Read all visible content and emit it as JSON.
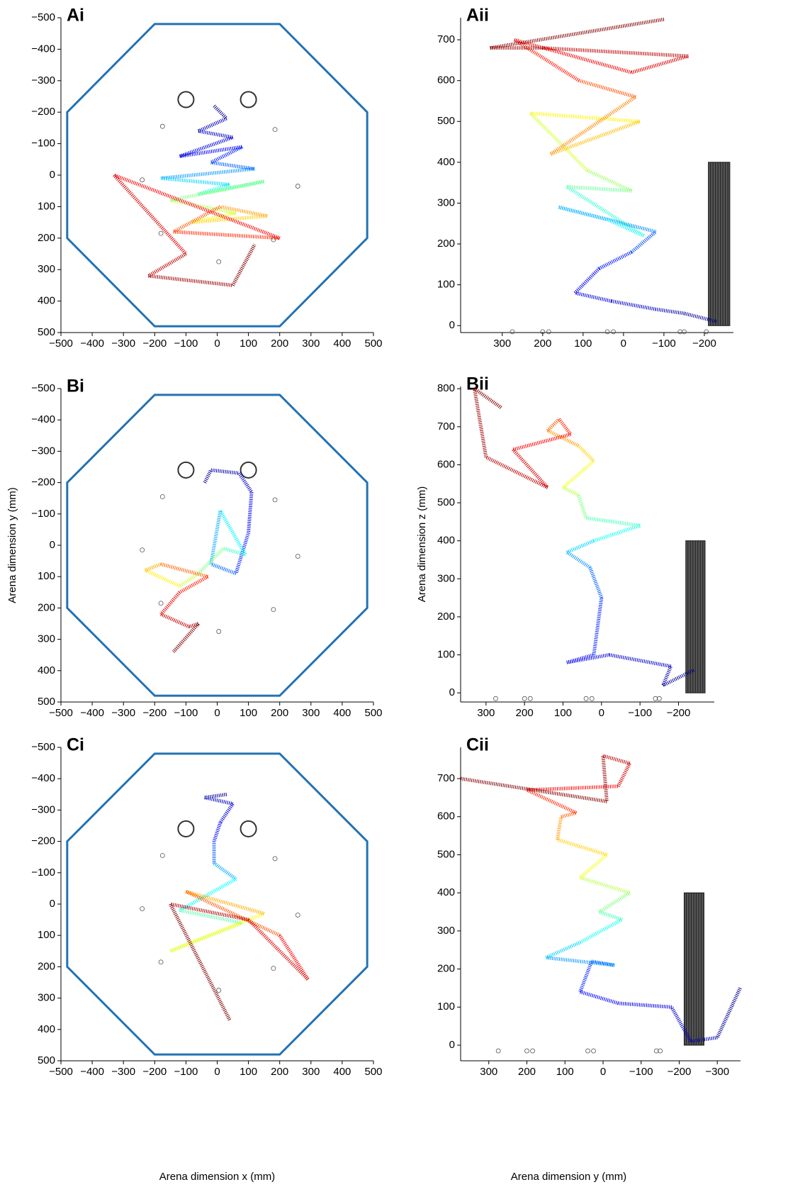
{
  "chart_data": [
    {
      "type": "line",
      "title": "Ai",
      "xlim": [
        -500,
        500
      ],
      "ylim": [
        500,
        -500
      ],
      "xticks": [
        {
          "value": -500,
          "label": "−500"
        },
        {
          "value": -400,
          "label": "−400"
        },
        {
          "value": -300,
          "label": "−300"
        },
        {
          "value": -200,
          "label": "−200"
        },
        {
          "value": -100,
          "label": "−100"
        },
        0,
        100,
        200,
        300,
        400,
        500
      ],
      "yticks": [
        {
          "value": -500,
          "label": "−500"
        },
        {
          "value": -400,
          "label": "−400"
        },
        {
          "value": -300,
          "label": "−300"
        },
        {
          "value": -200,
          "label": "−200"
        },
        {
          "value": -100,
          "label": "−100"
        },
        0,
        100,
        200,
        300,
        400,
        500
      ],
      "arena": {
        "color": "#2272b4",
        "x": [
          -200,
          200,
          480,
          480,
          200,
          -200,
          -480,
          -480
        ],
        "y": [
          -480,
          -480,
          -200,
          200,
          480,
          480,
          200,
          -200
        ]
      },
      "posts": {
        "x": [
          -100,
          100
        ],
        "y": [
          -240,
          -240
        ],
        "r": 25
      },
      "markers": {
        "x": [
          -175,
          185,
          -240,
          258,
          -180,
          180,
          5
        ],
        "y": [
          -155,
          -145,
          15,
          35,
          185,
          205,
          275
        ]
      },
      "colormap": [
        "#00008f",
        "#0000ff",
        "#00ffff",
        "#ffff00",
        "#ff0000",
        "#800000"
      ],
      "series": [
        {
          "x": [
            -10,
            30,
            -60,
            50,
            -120,
            80,
            -20,
            120,
            -180,
            40,
            -60,
            150,
            -150,
            60,
            -80,
            160,
            10,
            -140,
            200,
            -330,
            -100,
            -220,
            50,
            120
          ],
          "y": [
            -220,
            -180,
            -140,
            -120,
            -60,
            -90,
            -40,
            -20,
            10,
            30,
            60,
            20,
            80,
            120,
            150,
            130,
            100,
            180,
            200,
            0,
            250,
            320,
            350,
            220
          ]
        }
      ]
    },
    {
      "type": "line",
      "title": "Aii",
      "xlim": [
        403,
        -272
      ],
      "ylim": [
        -17,
        754
      ],
      "xticks": [
        300,
        200,
        100,
        0,
        {
          "value": -100,
          "label": "−100"
        },
        {
          "value": -200,
          "label": "−200"
        }
      ],
      "yticks": [
        0,
        100,
        200,
        300,
        400,
        500,
        600,
        700
      ],
      "obstacle": {
        "x": [
          -210,
          -263
        ],
        "y": [
          0,
          400
        ]
      },
      "markers": {
        "x": [
          275,
          200,
          185,
          40,
          25,
          -140,
          -150,
          -205
        ],
        "y": [
          -15,
          -15,
          -15,
          -15,
          -15,
          -15,
          -15,
          -15
        ]
      },
      "colormap": [
        "#00008f",
        "#0000ff",
        "#00ffff",
        "#ffff00",
        "#ff0000",
        "#800000"
      ],
      "series": [
        {
          "x": [
            -230,
            -150,
            -80,
            30,
            120,
            60,
            -20,
            -80,
            160,
            40,
            -50,
            140,
            -20,
            90,
            230,
            -40,
            180,
            -30,
            110,
            270,
            -20,
            -160,
            200,
            330,
            -100
          ],
          "y": [
            10,
            30,
            40,
            60,
            80,
            140,
            180,
            230,
            290,
            260,
            220,
            340,
            330,
            380,
            520,
            500,
            420,
            560,
            600,
            700,
            620,
            660,
            680,
            680,
            750
          ]
        }
      ]
    },
    {
      "type": "line",
      "title": "Bi",
      "ylabel": "Arena dimension y (mm)",
      "xlim": [
        -500,
        500
      ],
      "ylim": [
        500,
        -500
      ],
      "xticks": [
        {
          "value": -500,
          "label": "−500"
        },
        {
          "value": -400,
          "label": "−400"
        },
        {
          "value": -300,
          "label": "−300"
        },
        {
          "value": -200,
          "label": "−200"
        },
        {
          "value": -100,
          "label": "−100"
        },
        0,
        100,
        200,
        300,
        400,
        500
      ],
      "yticks": [
        {
          "value": -500,
          "label": "−500"
        },
        {
          "value": -400,
          "label": "−400"
        },
        {
          "value": -300,
          "label": "−300"
        },
        {
          "value": -200,
          "label": "−200"
        },
        {
          "value": -100,
          "label": "−100"
        },
        0,
        100,
        200,
        300,
        400,
        500
      ],
      "arena": {
        "color": "#2272b4",
        "x": [
          -200,
          200,
          480,
          480,
          200,
          -200,
          -480,
          -480
        ],
        "y": [
          -480,
          -480,
          -200,
          200,
          480,
          480,
          200,
          -200
        ]
      },
      "posts": {
        "x": [
          -100,
          100
        ],
        "y": [
          -240,
          -240
        ],
        "r": 25
      },
      "markers": {
        "x": [
          -175,
          185,
          -240,
          258,
          -180,
          180,
          5
        ],
        "y": [
          -155,
          -145,
          15,
          35,
          185,
          205,
          275
        ]
      },
      "colormap": [
        "#00008f",
        "#0000ff",
        "#00ffff",
        "#ffff00",
        "#ff0000",
        "#800000"
      ],
      "series": [
        {
          "x": [
            -40,
            -20,
            70,
            110,
            100,
            60,
            -20,
            10,
            90,
            20,
            -60,
            -120,
            -230,
            -180,
            -30,
            -120,
            -180,
            -90,
            -60,
            -140
          ],
          "y": [
            -200,
            -240,
            -230,
            -170,
            -40,
            90,
            60,
            -110,
            30,
            10,
            90,
            130,
            80,
            60,
            100,
            150,
            220,
            260,
            250,
            340
          ]
        }
      ]
    },
    {
      "type": "line",
      "title": "Bii",
      "ylabel": "Arena dimension z (mm)",
      "xlim": [
        366,
        -293
      ],
      "ylim": [
        -24,
        806
      ],
      "xticks": [
        300,
        200,
        100,
        0,
        {
          "value": -100,
          "label": "−100"
        },
        {
          "value": -200,
          "label": "−200"
        }
      ],
      "yticks": [
        0,
        100,
        200,
        300,
        400,
        500,
        600,
        700,
        800
      ],
      "obstacle": {
        "x": [
          -219,
          -269
        ],
        "y": [
          0,
          400
        ]
      },
      "markers": {
        "x": [
          275,
          200,
          185,
          40,
          25,
          -140,
          -150
        ],
        "y": [
          -15,
          -15,
          -15,
          -15,
          -15,
          -15,
          -15
        ]
      },
      "colormap": [
        "#00008f",
        "#0000ff",
        "#00ffff",
        "#ffff00",
        "#ff0000",
        "#800000"
      ],
      "series": [
        {
          "x": [
            -240,
            -160,
            -180,
            -20,
            90,
            20,
            0,
            30,
            90,
            20,
            -100,
            40,
            60,
            100,
            20,
            60,
            140,
            110,
            80,
            230,
            140,
            300,
            330,
            260
          ],
          "y": [
            60,
            20,
            70,
            100,
            80,
            100,
            250,
            330,
            370,
            400,
            440,
            460,
            520,
            540,
            610,
            650,
            690,
            720,
            680,
            640,
            540,
            620,
            800,
            750
          ]
        }
      ]
    },
    {
      "type": "line",
      "title": "Ci",
      "xlabel": "Arena dimension x (mm)",
      "xlim": [
        -500,
        500
      ],
      "ylim": [
        500,
        -500
      ],
      "xticks": [
        {
          "value": -500,
          "label": "−500"
        },
        {
          "value": -400,
          "label": "−400"
        },
        {
          "value": -300,
          "label": "−300"
        },
        {
          "value": -200,
          "label": "−200"
        },
        {
          "value": -100,
          "label": "−100"
        },
        0,
        100,
        200,
        300,
        400,
        500
      ],
      "yticks": [
        {
          "value": -500,
          "label": "−500"
        },
        {
          "value": -400,
          "label": "−400"
        },
        {
          "value": -300,
          "label": "−300"
        },
        {
          "value": -200,
          "label": "−200"
        },
        {
          "value": -100,
          "label": "−100"
        },
        0,
        100,
        200,
        300,
        400,
        500
      ],
      "arena": {
        "color": "#2272b4",
        "x": [
          -200,
          200,
          480,
          480,
          200,
          -200,
          -480,
          -480
        ],
        "y": [
          -480,
          -480,
          -200,
          200,
          480,
          480,
          200,
          -200
        ]
      },
      "posts": {
        "x": [
          -100,
          100
        ],
        "y": [
          -240,
          -240
        ],
        "r": 25
      },
      "markers": {
        "x": [
          -175,
          185,
          -240,
          258,
          -180,
          180,
          5
        ],
        "y": [
          -155,
          -145,
          15,
          35,
          185,
          205,
          275
        ]
      },
      "colormap": [
        "#00008f",
        "#0000ff",
        "#00ffff",
        "#ffff00",
        "#ff0000",
        "#800000"
      ],
      "series": [
        {
          "x": [
            30,
            -40,
            50,
            10,
            -10,
            -10,
            60,
            -120,
            80,
            -150,
            150,
            -100,
            200,
            290,
            100,
            -150,
            40
          ],
          "y": [
            -350,
            -340,
            -320,
            -260,
            -200,
            -130,
            -80,
            20,
            60,
            150,
            30,
            -40,
            100,
            240,
            50,
            0,
            370
          ]
        }
      ]
    },
    {
      "type": "line",
      "title": "Cii",
      "xlabel": "Arena dimension y (mm)",
      "xlim": [
        374,
        -361
      ],
      "ylim": [
        -41,
        782
      ],
      "xticks": [
        300,
        200,
        100,
        0,
        {
          "value": -100,
          "label": "−100"
        },
        {
          "value": -200,
          "label": "−200"
        },
        {
          "value": -300,
          "label": "−300"
        }
      ],
      "yticks": [
        0,
        100,
        200,
        300,
        400,
        500,
        600,
        700
      ],
      "obstacle": {
        "x": [
          -213,
          -265
        ],
        "y": [
          0,
          400
        ]
      },
      "markers": {
        "x": [
          275,
          200,
          185,
          40,
          25,
          -140,
          -150
        ],
        "y": [
          -15,
          -15,
          -15,
          -15,
          -15,
          -15,
          -15
        ]
      },
      "colormap": [
        "#00008f",
        "#0000ff",
        "#00ffff",
        "#ffff00",
        "#ff0000",
        "#800000"
      ],
      "series": [
        {
          "x": [
            -360,
            -300,
            -230,
            -180,
            -40,
            60,
            30,
            -30,
            150,
            60,
            -50,
            10,
            -70,
            60,
            -10,
            120,
            110,
            70,
            200,
            -40,
            -70,
            0,
            -10,
            374
          ],
          "y": [
            150,
            20,
            10,
            100,
            110,
            140,
            220,
            210,
            230,
            270,
            330,
            350,
            400,
            440,
            500,
            540,
            600,
            610,
            670,
            680,
            740,
            760,
            640,
            700
          ]
        }
      ]
    }
  ]
}
